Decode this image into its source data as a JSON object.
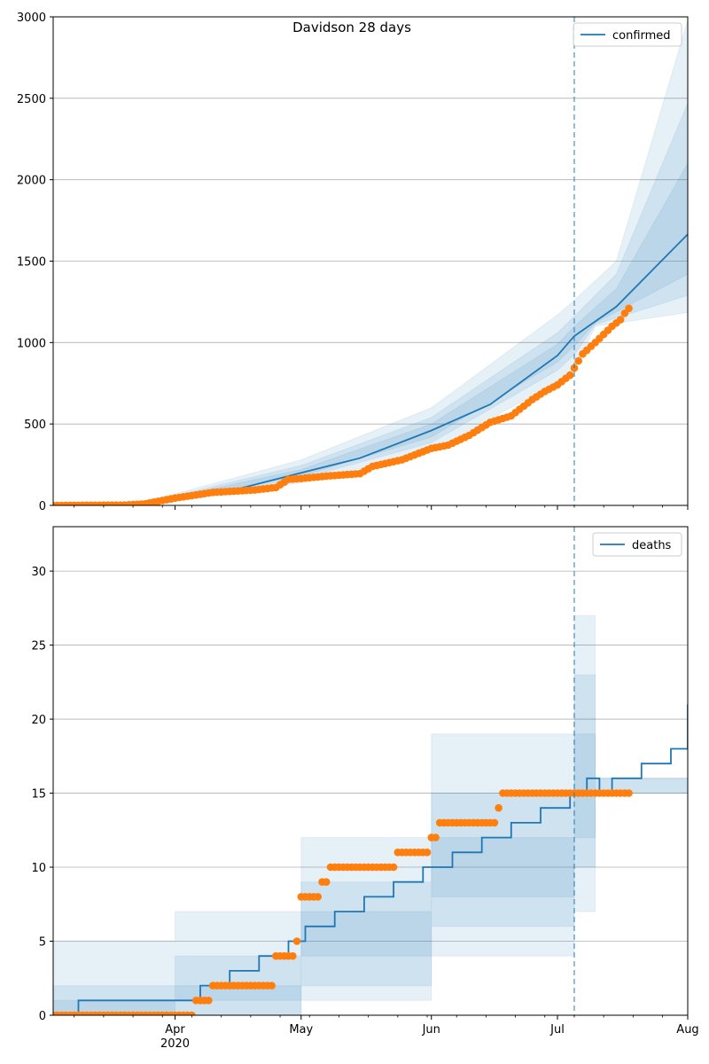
{
  "figure": {
    "title": "Davidson 28 days"
  },
  "colors": {
    "model": "#1f77b4",
    "observed": "#ff7f0e",
    "band": "#1f77b4",
    "grid": "#b0b0b0"
  },
  "x_axis": {
    "start": "2020-03-03",
    "end": "2020-08-01",
    "major_ticks": [
      {
        "date": "2020-04-01",
        "label": "Apr",
        "sublabel": "2020"
      },
      {
        "date": "2020-05-01",
        "label": "May",
        "sublabel": ""
      },
      {
        "date": "2020-06-01",
        "label": "Jun",
        "sublabel": ""
      },
      {
        "date": "2020-07-01",
        "label": "Jul",
        "sublabel": ""
      },
      {
        "date": "2020-08-01",
        "label": "Aug",
        "sublabel": ""
      }
    ],
    "minor_tick_weekday": "Sunday",
    "forecast_start": "2020-07-05"
  },
  "chart_data": [
    {
      "type": "line",
      "legend": {
        "label": "confirmed",
        "placement": "upper right"
      },
      "ylim": [
        0,
        3000
      ],
      "yticks": [
        0,
        500,
        1000,
        1500,
        2000,
        2500,
        3000
      ],
      "grid": "y",
      "model_median": [
        {
          "x": "2020-03-03",
          "y": 0
        },
        {
          "x": "2020-03-20",
          "y": 3
        },
        {
          "x": "2020-03-25",
          "y": 15
        },
        {
          "x": "2020-04-01",
          "y": 45
        },
        {
          "x": "2020-04-15",
          "y": 95
        },
        {
          "x": "2020-05-01",
          "y": 200
        },
        {
          "x": "2020-05-15",
          "y": 290
        },
        {
          "x": "2020-06-01",
          "y": 460
        },
        {
          "x": "2020-06-15",
          "y": 620
        },
        {
          "x": "2020-07-01",
          "y": 920
        },
        {
          "x": "2020-07-05",
          "y": 1040
        },
        {
          "x": "2020-07-15",
          "y": 1220
        },
        {
          "x": "2020-08-01",
          "y": 1665
        }
      ],
      "bands": [
        {
          "lower": [
            {
              "x": "2020-03-03",
              "y": 0
            },
            {
              "x": "2020-03-20",
              "y": 2
            },
            {
              "x": "2020-04-01",
              "y": 25
            },
            {
              "x": "2020-05-01",
              "y": 140
            },
            {
              "x": "2020-06-01",
              "y": 330
            },
            {
              "x": "2020-07-01",
              "y": 760
            },
            {
              "x": "2020-07-05",
              "y": 840
            },
            {
              "x": "2020-07-10",
              "y": 1100
            },
            {
              "x": "2020-08-01",
              "y": 1185
            }
          ],
          "upper": [
            {
              "x": "2020-03-03",
              "y": 0
            },
            {
              "x": "2020-03-20",
              "y": 5
            },
            {
              "x": "2020-04-01",
              "y": 70
            },
            {
              "x": "2020-05-01",
              "y": 280
            },
            {
              "x": "2020-06-01",
              "y": 600
            },
            {
              "x": "2020-07-01",
              "y": 1170
            },
            {
              "x": "2020-07-05",
              "y": 1260
            },
            {
              "x": "2020-07-15",
              "y": 1500
            },
            {
              "x": "2020-08-01",
              "y": 2980
            }
          ]
        },
        {
          "lower": [
            {
              "x": "2020-03-03",
              "y": 0
            },
            {
              "x": "2020-03-20",
              "y": 2
            },
            {
              "x": "2020-04-01",
              "y": 32
            },
            {
              "x": "2020-05-01",
              "y": 165
            },
            {
              "x": "2020-06-01",
              "y": 385
            },
            {
              "x": "2020-07-01",
              "y": 830
            },
            {
              "x": "2020-07-05",
              "y": 925
            },
            {
              "x": "2020-07-10",
              "y": 1110
            },
            {
              "x": "2020-08-01",
              "y": 1290
            }
          ],
          "upper": [
            {
              "x": "2020-03-03",
              "y": 0
            },
            {
              "x": "2020-03-20",
              "y": 4
            },
            {
              "x": "2020-04-01",
              "y": 60
            },
            {
              "x": "2020-05-01",
              "y": 245
            },
            {
              "x": "2020-06-01",
              "y": 540
            },
            {
              "x": "2020-07-01",
              "y": 1060
            },
            {
              "x": "2020-07-05",
              "y": 1160
            },
            {
              "x": "2020-07-15",
              "y": 1420
            },
            {
              "x": "2020-08-01",
              "y": 2470
            }
          ]
        },
        {
          "lower": [
            {
              "x": "2020-03-03",
              "y": 0
            },
            {
              "x": "2020-03-20",
              "y": 3
            },
            {
              "x": "2020-04-01",
              "y": 38
            },
            {
              "x": "2020-05-01",
              "y": 180
            },
            {
              "x": "2020-06-01",
              "y": 420
            },
            {
              "x": "2020-07-01",
              "y": 880
            },
            {
              "x": "2020-07-05",
              "y": 980
            },
            {
              "x": "2020-07-10",
              "y": 1120
            },
            {
              "x": "2020-08-01",
              "y": 1420
            }
          ],
          "upper": [
            {
              "x": "2020-03-03",
              "y": 0
            },
            {
              "x": "2020-03-20",
              "y": 4
            },
            {
              "x": "2020-04-01",
              "y": 52
            },
            {
              "x": "2020-05-01",
              "y": 220
            },
            {
              "x": "2020-06-01",
              "y": 500
            },
            {
              "x": "2020-07-01",
              "y": 990
            },
            {
              "x": "2020-07-05",
              "y": 1100
            },
            {
              "x": "2020-07-15",
              "y": 1330
            },
            {
              "x": "2020-08-01",
              "y": 2100
            }
          ]
        }
      ],
      "observed": [
        {
          "x": "2020-03-03",
          "y": 0
        },
        {
          "x": "2020-03-20",
          "y": 2
        },
        {
          "x": "2020-03-25",
          "y": 10
        },
        {
          "x": "2020-04-01",
          "y": 45
        },
        {
          "x": "2020-04-10",
          "y": 80
        },
        {
          "x": "2020-04-20",
          "y": 95
        },
        {
          "x": "2020-04-25",
          "y": 110
        },
        {
          "x": "2020-04-28",
          "y": 160
        },
        {
          "x": "2020-05-01",
          "y": 165
        },
        {
          "x": "2020-05-07",
          "y": 180
        },
        {
          "x": "2020-05-15",
          "y": 195
        },
        {
          "x": "2020-05-18",
          "y": 240
        },
        {
          "x": "2020-05-25",
          "y": 280
        },
        {
          "x": "2020-06-01",
          "y": 350
        },
        {
          "x": "2020-06-05",
          "y": 370
        },
        {
          "x": "2020-06-10",
          "y": 430
        },
        {
          "x": "2020-06-15",
          "y": 510
        },
        {
          "x": "2020-06-20",
          "y": 550
        },
        {
          "x": "2020-06-25",
          "y": 650
        },
        {
          "x": "2020-06-28",
          "y": 700
        },
        {
          "x": "2020-07-01",
          "y": 740
        },
        {
          "x": "2020-07-04",
          "y": 800
        },
        {
          "x": "2020-07-07",
          "y": 930
        },
        {
          "x": "2020-07-10",
          "y": 1000
        },
        {
          "x": "2020-07-12",
          "y": 1050
        },
        {
          "x": "2020-07-14",
          "y": 1100
        },
        {
          "x": "2020-07-16",
          "y": 1140
        },
        {
          "x": "2020-07-17",
          "y": 1180
        },
        {
          "x": "2020-07-18",
          "y": 1210
        }
      ]
    },
    {
      "type": "line",
      "legend": {
        "label": "deaths",
        "placement": "upper right"
      },
      "ylim": [
        0,
        33
      ],
      "yticks": [
        0,
        5,
        10,
        15,
        20,
        25,
        30
      ],
      "grid": "y",
      "step": true,
      "model_median": [
        {
          "x": "2020-03-03",
          "y": 0
        },
        {
          "x": "2020-03-09",
          "y": 1
        },
        {
          "x": "2020-04-07",
          "y": 2
        },
        {
          "x": "2020-04-14",
          "y": 3
        },
        {
          "x": "2020-04-21",
          "y": 4
        },
        {
          "x": "2020-04-28",
          "y": 5
        },
        {
          "x": "2020-05-02",
          "y": 6
        },
        {
          "x": "2020-05-09",
          "y": 7
        },
        {
          "x": "2020-05-16",
          "y": 8
        },
        {
          "x": "2020-05-23",
          "y": 9
        },
        {
          "x": "2020-05-30",
          "y": 10
        },
        {
          "x": "2020-06-06",
          "y": 11
        },
        {
          "x": "2020-06-13",
          "y": 12
        },
        {
          "x": "2020-06-20",
          "y": 13
        },
        {
          "x": "2020-06-27",
          "y": 14
        },
        {
          "x": "2020-07-04",
          "y": 15
        },
        {
          "x": "2020-07-08",
          "y": 16
        },
        {
          "x": "2020-07-11",
          "y": 15
        },
        {
          "x": "2020-07-14",
          "y": 16
        },
        {
          "x": "2020-07-21",
          "y": 17
        },
        {
          "x": "2020-07-28",
          "y": 18
        },
        {
          "x": "2020-08-01",
          "y": 21
        }
      ],
      "bands": [
        {
          "lower": [
            {
              "x": "2020-03-03",
              "y": 0
            },
            {
              "x": "2020-04-14",
              "y": 0
            },
            {
              "x": "2020-05-01",
              "y": 1
            },
            {
              "x": "2020-06-01",
              "y": 4
            },
            {
              "x": "2020-07-05",
              "y": 7
            },
            {
              "x": "2020-07-10",
              "y": 15
            },
            {
              "x": "2020-08-01",
              "y": 16
            }
          ],
          "upper": [
            {
              "x": "2020-03-03",
              "y": 5
            },
            {
              "x": "2020-04-01",
              "y": 7
            },
            {
              "x": "2020-05-01",
              "y": 12
            },
            {
              "x": "2020-06-01",
              "y": 19
            },
            {
              "x": "2020-07-05",
              "y": 27
            },
            {
              "x": "2020-07-10",
              "y": 16
            },
            {
              "x": "2020-08-01",
              "y": 33
            }
          ]
        },
        {
          "lower": [
            {
              "x": "2020-03-03",
              "y": 0
            },
            {
              "x": "2020-04-01",
              "y": 0
            },
            {
              "x": "2020-05-01",
              "y": 2
            },
            {
              "x": "2020-06-01",
              "y": 6
            },
            {
              "x": "2020-07-05",
              "y": 10
            },
            {
              "x": "2020-07-10",
              "y": 15
            },
            {
              "x": "2020-08-01",
              "y": 18
            }
          ],
          "upper": [
            {
              "x": "2020-03-03",
              "y": 2
            },
            {
              "x": "2020-04-01",
              "y": 4
            },
            {
              "x": "2020-05-01",
              "y": 9
            },
            {
              "x": "2020-06-01",
              "y": 15
            },
            {
              "x": "2020-07-05",
              "y": 23
            },
            {
              "x": "2020-07-10",
              "y": 16
            },
            {
              "x": "2020-08-01",
              "y": 28
            }
          ]
        },
        {
          "lower": [
            {
              "x": "2020-03-03",
              "y": 0
            },
            {
              "x": "2020-04-01",
              "y": 1
            },
            {
              "x": "2020-05-01",
              "y": 4
            },
            {
              "x": "2020-06-01",
              "y": 8
            },
            {
              "x": "2020-07-05",
              "y": 12
            },
            {
              "x": "2020-07-10",
              "y": 16
            },
            {
              "x": "2020-08-01",
              "y": 20
            }
          ],
          "upper": [
            {
              "x": "2020-03-03",
              "y": 1
            },
            {
              "x": "2020-04-01",
              "y": 2
            },
            {
              "x": "2020-05-01",
              "y": 7
            },
            {
              "x": "2020-06-01",
              "y": 12
            },
            {
              "x": "2020-07-05",
              "y": 19
            },
            {
              "x": "2020-07-10",
              "y": 16
            },
            {
              "x": "2020-08-01",
              "y": 24
            }
          ]
        }
      ],
      "observed": [
        {
          "x": "2020-03-03",
          "y": 0
        },
        {
          "x": "2020-03-15",
          "y": 0
        },
        {
          "x": "2020-03-25",
          "y": 0
        },
        {
          "x": "2020-04-04",
          "y": 0
        },
        {
          "x": "2020-04-06",
          "y": 1
        },
        {
          "x": "2020-04-08",
          "y": 1
        },
        {
          "x": "2020-04-10",
          "y": 2
        },
        {
          "x": "2020-04-16",
          "y": 2
        },
        {
          "x": "2020-04-22",
          "y": 2
        },
        {
          "x": "2020-04-24",
          "y": 2
        },
        {
          "x": "2020-04-25",
          "y": 4
        },
        {
          "x": "2020-04-29",
          "y": 4
        },
        {
          "x": "2020-04-30",
          "y": 5
        },
        {
          "x": "2020-05-01",
          "y": 8
        },
        {
          "x": "2020-05-05",
          "y": 8
        },
        {
          "x": "2020-05-06",
          "y": 9
        },
        {
          "x": "2020-05-08",
          "y": 10
        },
        {
          "x": "2020-05-15",
          "y": 10
        },
        {
          "x": "2020-05-22",
          "y": 10
        },
        {
          "x": "2020-05-24",
          "y": 11
        },
        {
          "x": "2020-05-30",
          "y": 11
        },
        {
          "x": "2020-06-01",
          "y": 12
        },
        {
          "x": "2020-06-03",
          "y": 13
        },
        {
          "x": "2020-06-10",
          "y": 13
        },
        {
          "x": "2020-06-16",
          "y": 13
        },
        {
          "x": "2020-06-17",
          "y": 14
        },
        {
          "x": "2020-06-18",
          "y": 15
        },
        {
          "x": "2020-06-25",
          "y": 15
        },
        {
          "x": "2020-07-01",
          "y": 15
        },
        {
          "x": "2020-07-08",
          "y": 15
        },
        {
          "x": "2020-07-18",
          "y": 15
        }
      ]
    }
  ]
}
